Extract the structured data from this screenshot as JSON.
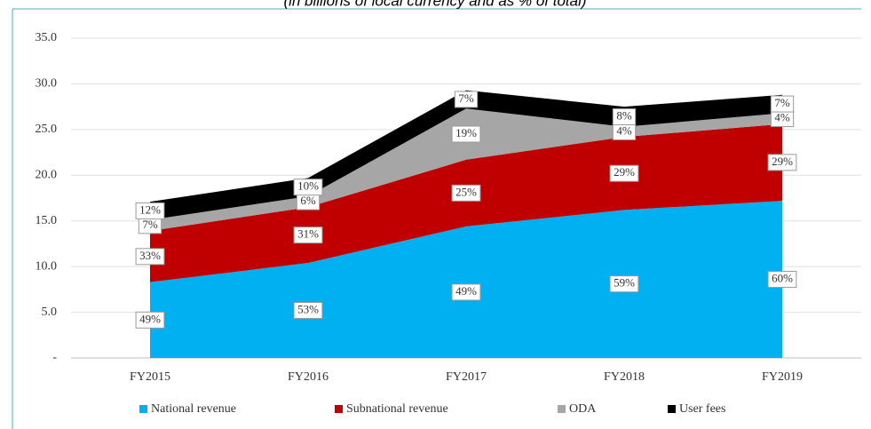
{
  "chart_data": {
    "type": "stacked_area",
    "subtitle": "(in billions of local currency and as % of total)",
    "categories": [
      "FY2015",
      "FY2016",
      "FY2017",
      "FY2018",
      "FY2019"
    ],
    "series": [
      {
        "name": "National revenue",
        "color": "#00b0f0",
        "values": [
          8.3,
          10.4,
          14.4,
          16.2,
          17.2
        ],
        "labels": [
          "49%",
          "53%",
          "49%",
          "59%",
          "60%"
        ]
      },
      {
        "name": "Subnational revenue",
        "color": "#c00000",
        "values": [
          5.6,
          6.1,
          7.3,
          8.0,
          8.4
        ],
        "labels": [
          "33%",
          "31%",
          "25%",
          "29%",
          "29%"
        ]
      },
      {
        "name": "ODA",
        "color": "#a6a6a6",
        "values": [
          1.2,
          1.2,
          5.6,
          1.1,
          1.2
        ],
        "labels": [
          "7%",
          "6%",
          "19%",
          "4%",
          "4%"
        ]
      },
      {
        "name": "User fees",
        "color": "#000000",
        "values": [
          2.0,
          2.0,
          2.0,
          2.2,
          2.0
        ],
        "labels": [
          "12%",
          "10%",
          "7%",
          "8%",
          "7%"
        ]
      }
    ],
    "ylim": [
      0,
      35
    ],
    "yticks": [
      {
        "value": 0,
        "label": "-"
      },
      {
        "value": 5,
        "label": "5.0"
      },
      {
        "value": 10,
        "label": "10.0"
      },
      {
        "value": 15,
        "label": "15.0"
      },
      {
        "value": 20,
        "label": "20.0"
      },
      {
        "value": 25,
        "label": "25.0"
      },
      {
        "value": 30,
        "label": "30.0"
      },
      {
        "value": 35,
        "label": "35.0"
      }
    ],
    "grid": true,
    "legend": "bottom"
  }
}
